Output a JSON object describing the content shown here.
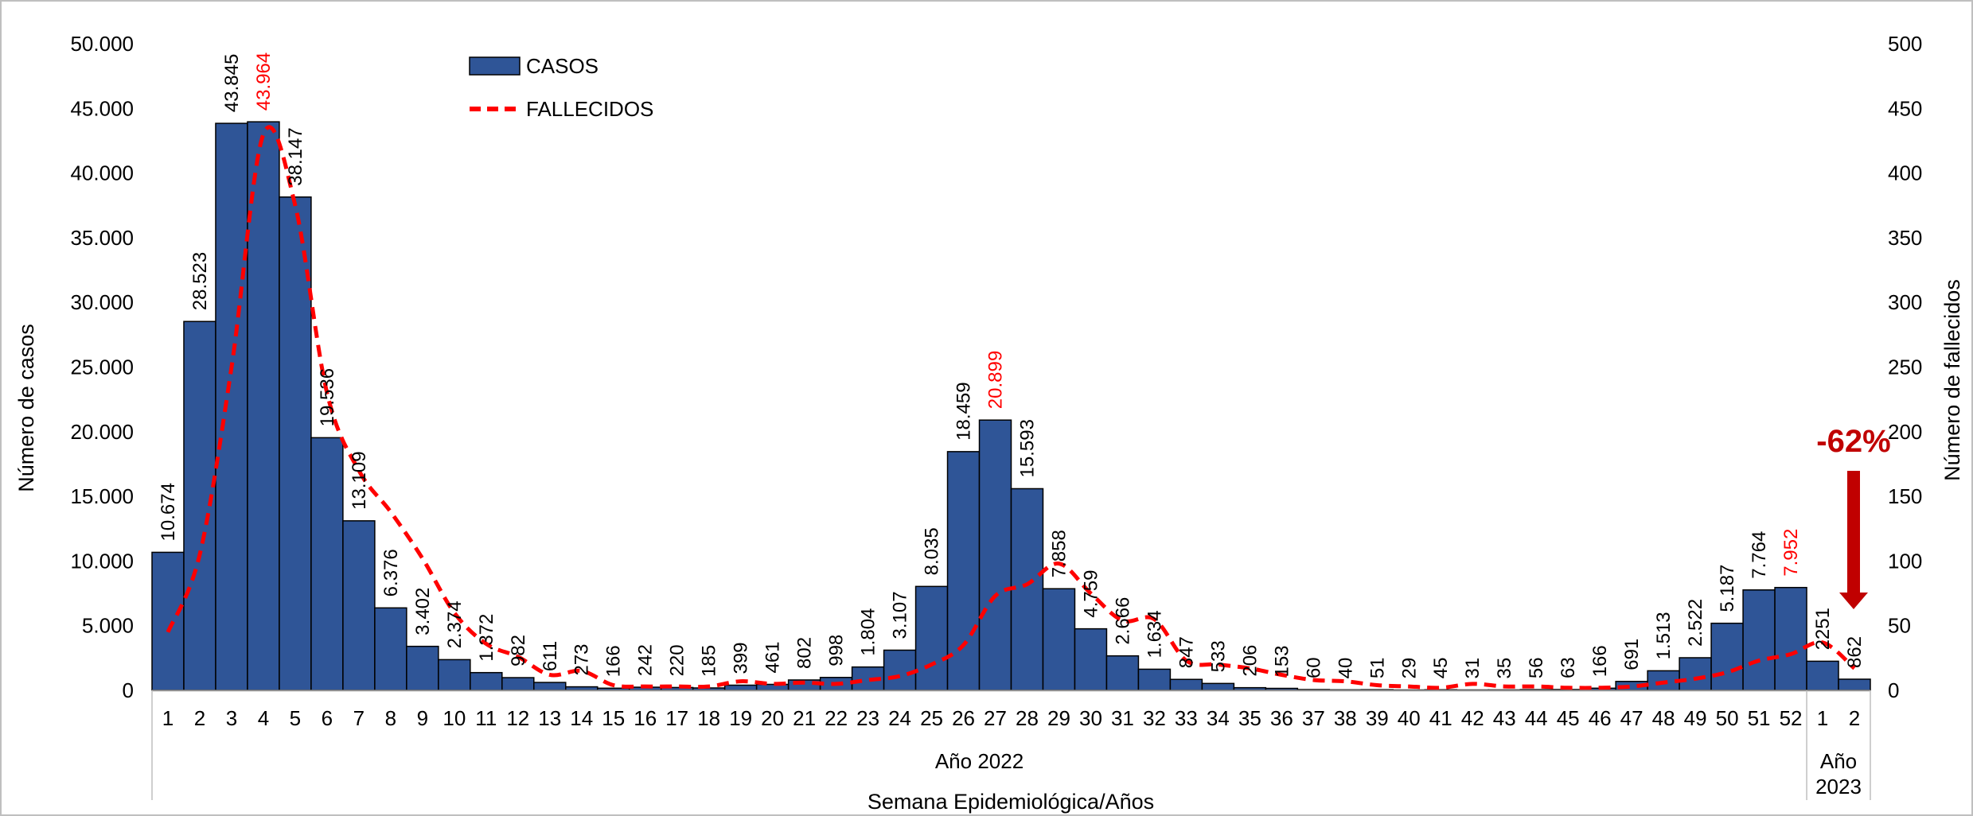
{
  "chart_data": {
    "type": "bar",
    "colors": {
      "bars": "#2f5597",
      "bar_border": "#000000",
      "line": "#ff0000",
      "highlight_label": "#ff0000",
      "annotation": "#c00000",
      "axis": "#808080",
      "frame": "#bfbfbf"
    },
    "categories": [
      "1",
      "2",
      "3",
      "4",
      "5",
      "6",
      "7",
      "8",
      "9",
      "10",
      "11",
      "12",
      "13",
      "14",
      "15",
      "16",
      "17",
      "18",
      "19",
      "20",
      "21",
      "22",
      "23",
      "24",
      "25",
      "26",
      "27",
      "28",
      "29",
      "30",
      "31",
      "32",
      "33",
      "34",
      "35",
      "36",
      "37",
      "38",
      "39",
      "40",
      "41",
      "42",
      "43",
      "44",
      "45",
      "46",
      "47",
      "48",
      "49",
      "50",
      "51",
      "52",
      "1",
      "2"
    ],
    "groups": [
      {
        "label": "Año 2022",
        "start": 0,
        "end": 51
      },
      {
        "label_lines": [
          "Año",
          "2023"
        ],
        "start": 52,
        "end": 53
      }
    ],
    "xlabel": "Semana Epidemiológica/Años",
    "ylabel": "Número de casos",
    "y2label": "Número de fallecidos",
    "ylim": [
      0,
      50000
    ],
    "y_ticks": [
      "0",
      "5.000",
      "10.000",
      "15.000",
      "20.000",
      "25.000",
      "30.000",
      "35.000",
      "40.000",
      "45.000",
      "50.000"
    ],
    "y2lim": [
      0,
      500
    ],
    "y2_ticks": [
      "0",
      "50",
      "100",
      "150",
      "200",
      "250",
      "300",
      "350",
      "400",
      "450",
      "500"
    ],
    "grid": false,
    "legend_position": "top-left",
    "series": [
      {
        "name": "CASOS",
        "type": "bar",
        "axis": "left",
        "values": [
          10674,
          28523,
          43845,
          43964,
          38147,
          19536,
          13109,
          6376,
          3402,
          2374,
          1372,
          982,
          611,
          273,
          166,
          242,
          220,
          185,
          399,
          461,
          802,
          998,
          1804,
          3107,
          8035,
          18459,
          20899,
          15593,
          7858,
          4759,
          2666,
          1634,
          847,
          533,
          206,
          153,
          60,
          40,
          51,
          29,
          45,
          31,
          35,
          56,
          63,
          166,
          691,
          1513,
          2522,
          5187,
          7764,
          7952,
          2251,
          862
        ],
        "labels": [
          "10.674",
          "28.523",
          "43.845",
          "43.964",
          "38.147",
          "19.536",
          "13.109",
          "6.376",
          "3.402",
          "2.374",
          "1.372",
          "982",
          "611",
          "273",
          "166",
          "242",
          "220",
          "185",
          "399",
          "461",
          "802",
          "998",
          "1.804",
          "3.107",
          "8.035",
          "18.459",
          "20.899",
          "15.593",
          "7.858",
          "4.759",
          "2.666",
          "1.634",
          "847",
          "533",
          "206",
          "153",
          "60",
          "40",
          "51",
          "29",
          "45",
          "31",
          "35",
          "56",
          "63",
          "166",
          "691",
          "1.513",
          "2.522",
          "5.187",
          "7.764",
          "7.952",
          "2251",
          "862"
        ],
        "highlighted_indices": [
          3,
          26,
          51
        ]
      },
      {
        "name": "FALLECIDOS",
        "type": "line",
        "style": "dashed",
        "axis": "right",
        "values": [
          45,
          105,
          250,
          430,
          375,
          230,
          170,
          138,
          102,
          60,
          36,
          26,
          12,
          15,
          4,
          3,
          3,
          3,
          7,
          5,
          6,
          5,
          8,
          11,
          20,
          35,
          73,
          82,
          98,
          75,
          54,
          55,
          23,
          20,
          17,
          12,
          8,
          7,
          4,
          3,
          2,
          5,
          3,
          3,
          2,
          2,
          3,
          6,
          9,
          14,
          23,
          28,
          37,
          17
        ]
      }
    ],
    "annotation": {
      "text": "-62%",
      "direction": "down-arrow"
    }
  }
}
